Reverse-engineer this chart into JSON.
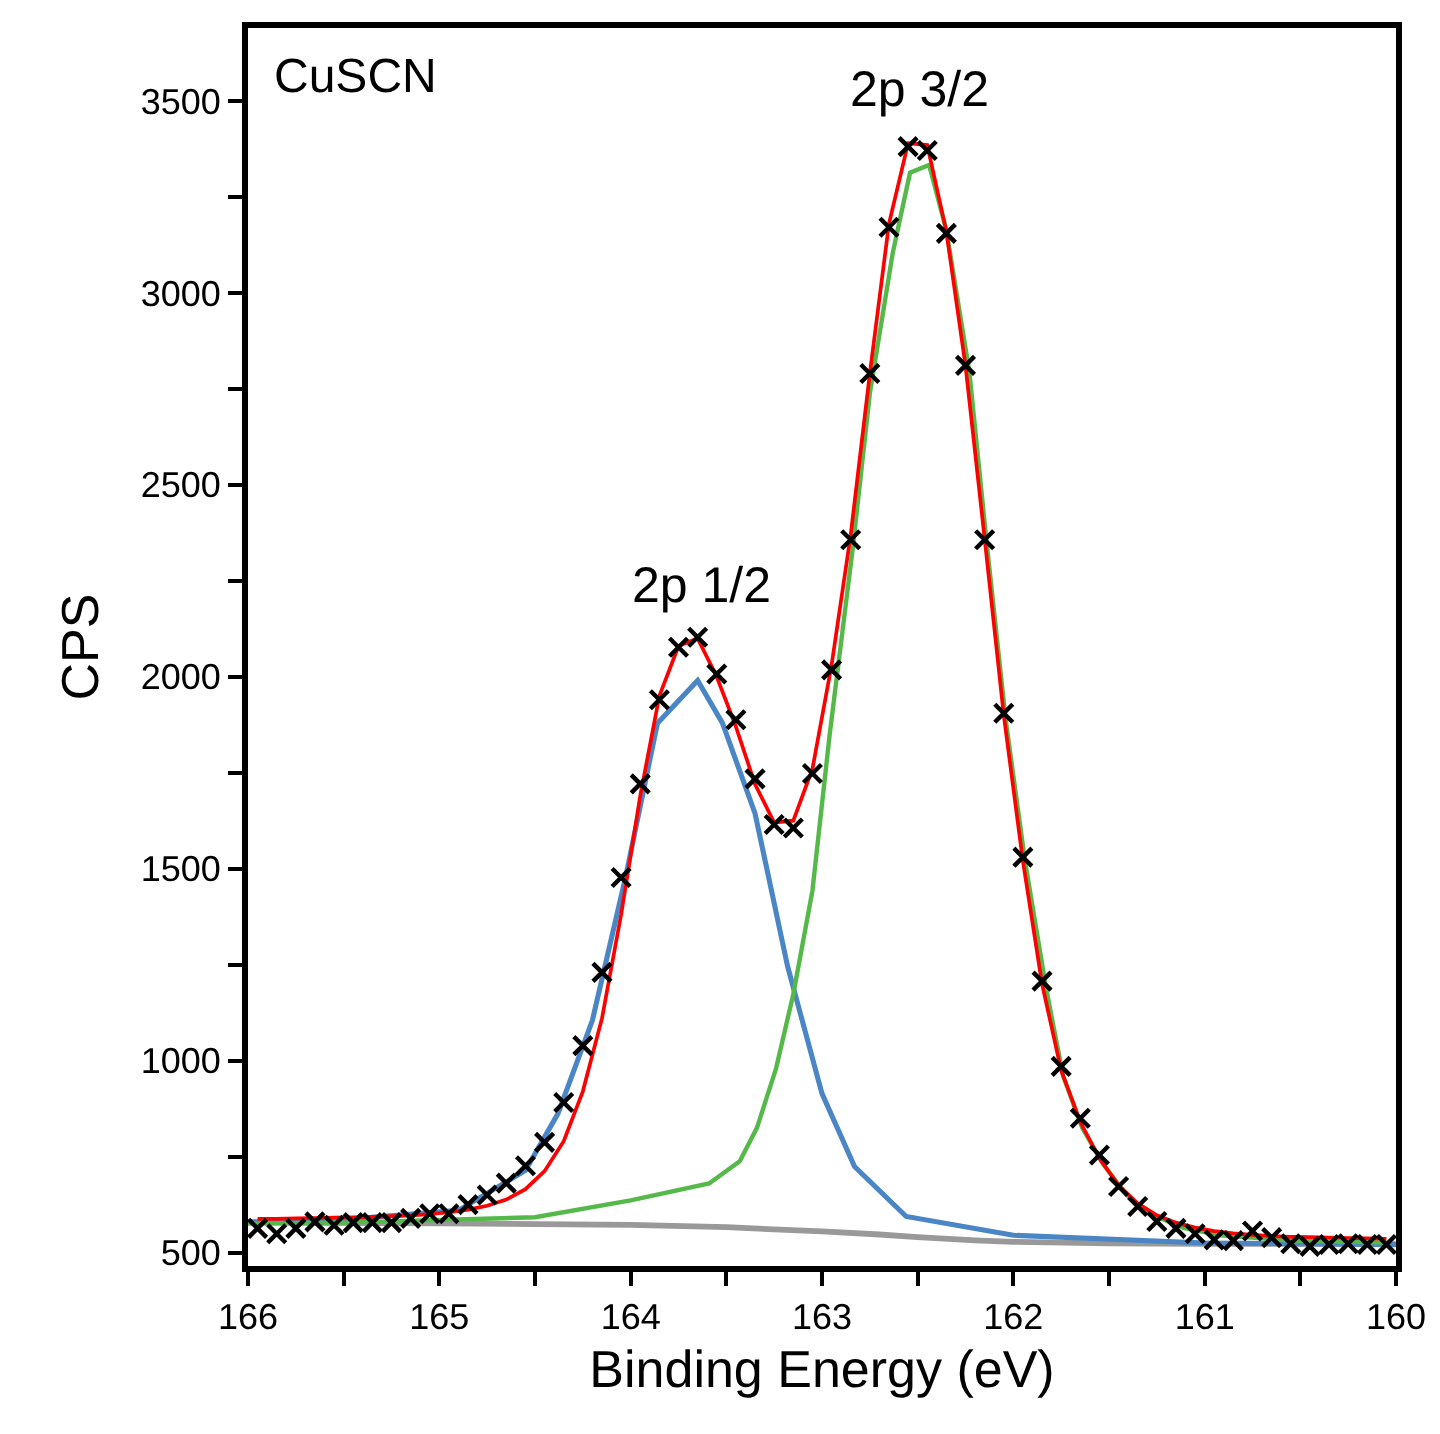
{
  "chart_data": {
    "type": "line",
    "xlabel": "Binding Energy (eV)",
    "ylabel": "CPS",
    "annotations": [
      "CuSCN",
      "2p 1/2",
      "2p 3/2"
    ],
    "xlim": [
      166,
      160
    ],
    "ylim": [
      465,
      3690
    ],
    "xticks": [
      166,
      {
        "value": 165.5,
        "label": null
      },
      165,
      {
        "value": 164.5,
        "label": null
      },
      164,
      {
        "value": 163.5,
        "label": null
      },
      163,
      {
        "value": 162.5,
        "label": null
      },
      162,
      {
        "value": 161.5,
        "label": null
      },
      161,
      {
        "value": 160.5,
        "label": null
      },
      160
    ],
    "yticks": [
      500,
      {
        "value": 750,
        "label": null
      },
      1000,
      {
        "value": 1250,
        "label": null
      },
      1500,
      {
        "value": 1750,
        "label": null
      },
      2000,
      {
        "value": 2250,
        "label": null
      },
      2500,
      {
        "value": 2750,
        "label": null
      },
      3000,
      {
        "value": 3250,
        "label": null
      },
      3500
    ],
    "grid": false,
    "line_style": "solid",
    "series": [
      {
        "type": "line",
        "color": "#999999",
        "marker": "none",
        "x": [
          166,
          165,
          164.5,
          164,
          163.5,
          163,
          162.7,
          162.5,
          162.2,
          162,
          161.5,
          161,
          160
        ],
        "values": [
          578,
          576,
          574,
          572,
          566,
          555,
          547,
          540,
          532,
          528,
          524,
          523,
          522
        ]
      },
      {
        "type": "line",
        "color": "#4a86c5",
        "marker": "none",
        "x": [
          166,
          165.58,
          164.9,
          164.55,
          164.38,
          164.2,
          164.03,
          163.86,
          163.65,
          163.52,
          163.35,
          163.18,
          163.0,
          162.83,
          162.56,
          162,
          161,
          160
        ],
        "values": [
          580,
          583,
          610,
          714,
          862,
          1105,
          1470,
          1879,
          1990,
          1879,
          1644,
          1246,
          914,
          724,
          594,
          545,
          525,
          521
        ]
      },
      {
        "type": "line",
        "color": "#55b94a",
        "marker": "none",
        "x": [
          166,
          165.5,
          164.5,
          164,
          163.59,
          163.43,
          163.34,
          163.24,
          163.15,
          163.05,
          162.96,
          162.84,
          162.75,
          162.63,
          162.54,
          162.44,
          162.35,
          162.23,
          162.14,
          162.04,
          161.94,
          161.83,
          161.74,
          161.64,
          161.53,
          161.41,
          161.3,
          161.11,
          160.92,
          160.54,
          160.04
        ],
        "values": [
          576,
          578,
          592,
          636,
          680,
          738,
          825,
          980,
          1173,
          1443,
          1849,
          2332,
          2738,
          3105,
          3313,
          3333,
          3163,
          2795,
          2352,
          1888,
          1523,
          1192,
          960,
          825,
          730,
          651,
          604,
          564,
          545,
          531,
          526
        ]
      },
      {
        "type": "line",
        "color": "#ff0000",
        "marker": "none",
        "x": [
          165.95,
          165.85,
          165.75,
          165.65,
          165.55,
          165.45,
          165.35,
          165.25,
          165.15,
          165.05,
          164.95,
          164.85,
          164.75,
          164.65,
          164.55,
          164.45,
          164.35,
          164.25,
          164.15,
          164.05,
          163.95,
          163.85,
          163.75,
          163.65,
          163.55,
          163.45,
          163.35,
          163.25,
          163.15,
          163.05,
          162.95,
          162.85,
          162.75,
          162.65,
          162.55,
          162.45,
          162.35,
          162.25,
          162.15,
          162.05,
          161.95,
          161.85,
          161.75,
          161.65,
          161.55,
          161.45,
          161.35,
          161.25,
          161.15,
          161.05,
          160.95,
          160.85,
          160.75,
          160.65,
          160.55,
          160.45,
          160.35,
          160.25,
          160.15,
          160.05
        ],
        "values": [
          588,
          588,
          589,
          590,
          591,
          592,
          593,
          595,
          597,
          600,
          605,
          612,
          622,
          638,
          665,
          712,
          790,
          920,
          1110,
          1380,
          1690,
          1950,
          2080,
          2100,
          2000,
          1870,
          1720,
          1620,
          1625,
          1760,
          2030,
          2370,
          2790,
          3180,
          3390,
          3385,
          3160,
          2810,
          2360,
          1900,
          1520,
          1200,
          975,
          840,
          745,
          675,
          628,
          597,
          578,
          565,
          556,
          550,
          546,
          543,
          541,
          540,
          539,
          538,
          537,
          536
        ]
      },
      {
        "type": "scatter",
        "color": "#000000",
        "marker": "cross",
        "x": [
          165.95,
          165.85,
          165.75,
          165.65,
          165.55,
          165.45,
          165.35,
          165.25,
          165.15,
          165.05,
          164.95,
          164.85,
          164.75,
          164.65,
          164.55,
          164.45,
          164.35,
          164.25,
          164.15,
          164.05,
          163.95,
          163.85,
          163.75,
          163.65,
          163.55,
          163.45,
          163.35,
          163.25,
          163.15,
          163.05,
          162.95,
          162.85,
          162.75,
          162.65,
          162.55,
          162.45,
          162.35,
          162.25,
          162.15,
          162.05,
          161.95,
          161.85,
          161.75,
          161.65,
          161.55,
          161.45,
          161.35,
          161.25,
          161.15,
          161.05,
          160.95,
          160.85,
          160.75,
          160.65,
          160.55,
          160.45,
          160.35,
          160.25,
          160.15,
          160.05
        ],
        "values": [
          563,
          549,
          563,
          580,
          571,
          578,
          578,
          578,
          589,
          601,
          601,
          625,
          650,
          681,
          726,
          787,
          891,
          1039,
          1230,
          1477,
          1721,
          1940,
          2077,
          2103,
          2007,
          1888,
          1734,
          1615,
          1606,
          1748,
          2018,
          2357,
          2790,
          3171,
          3381,
          3371,
          3155,
          2811,
          2357,
          1905,
          1530,
          1207,
          985,
          850,
          754,
          672,
          620,
          581,
          563,
          549,
          533,
          531,
          556,
          539,
          523,
          516,
          521,
          523,
          521,
          521
        ]
      }
    ]
  }
}
